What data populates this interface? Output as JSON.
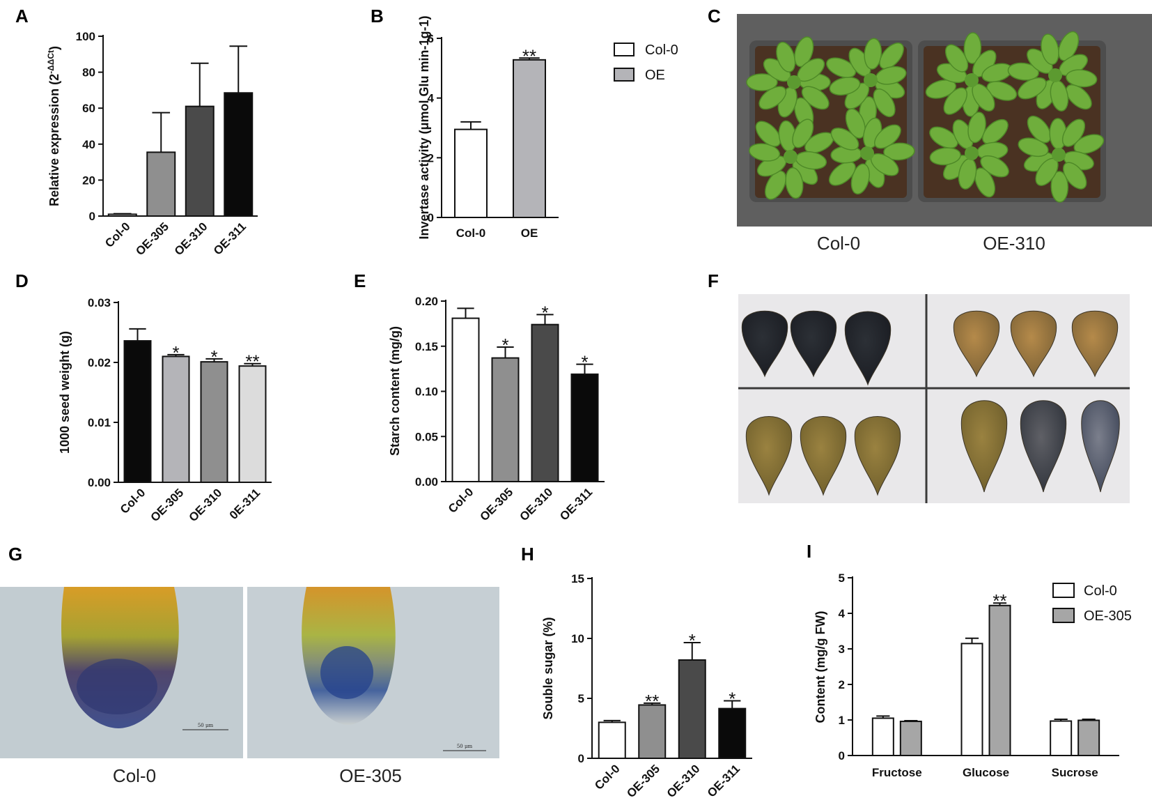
{
  "panel_letters": {
    "A": "A",
    "B": "B",
    "C": "C",
    "D": "D",
    "E": "E",
    "F": "F",
    "G": "G",
    "H": "H",
    "I": "I"
  },
  "photo_c": {
    "labels": [
      "Col-0",
      "OE-310"
    ]
  },
  "photo_g": {
    "labels": [
      "Col-0",
      "OE-305"
    ],
    "scale_bar": "50 μm"
  },
  "colors": {
    "black": "#0a0a0a",
    "dark": "#4a4a4a",
    "mid": "#8f8f8f",
    "light": "#b4b4b8",
    "pale": "#dcdcdc",
    "white": "#ffffff",
    "soil": "#4a3222",
    "leaf": "#6fae3c",
    "tray": "#4d4d4d",
    "backdrop": "#5f5f5f"
  },
  "chart_data": [
    {
      "panel": "A",
      "type": "bar",
      "ylabel": "Relative expression (2",
      "ylabel_sup": "-ΔΔCt",
      "ylabel_close": ")",
      "categories": [
        "Col-0",
        "OE-305",
        "OE-310",
        "OE-311"
      ],
      "values": [
        1,
        35.5,
        61,
        68.5
      ],
      "errors": [
        0.3,
        22,
        24,
        26
      ],
      "fills": [
        "#ffffff",
        "#8f8f8f",
        "#4a4a4a",
        "#0a0a0a"
      ],
      "sig": [
        "",
        "",
        "",
        ""
      ],
      "ylim": [
        0,
        100
      ],
      "yticks": [
        "0",
        "20",
        "40",
        "60",
        "80",
        "100"
      ]
    },
    {
      "panel": "B",
      "type": "bar",
      "ylabel": "Invertase activity (μmol Glu min-1g-1)",
      "categories": [
        "Col-0",
        "OE"
      ],
      "values": [
        2.95,
        5.28
      ],
      "errors": [
        0.25,
        0.06
      ],
      "fills": [
        "#ffffff",
        "#b4b4b8"
      ],
      "sig": [
        "",
        "**"
      ],
      "ylim": [
        0,
        6
      ],
      "yticks": [
        "0",
        "2",
        "4",
        "6"
      ],
      "legend": [
        "Col-0",
        "OE"
      ]
    },
    {
      "panel": "D",
      "type": "bar",
      "ylabel": "1000 seed weight (g)",
      "categories": [
        "Col-0",
        "OE-305",
        "OE-310",
        "0E-311"
      ],
      "values": [
        0.0236,
        0.021,
        0.0201,
        0.0194
      ],
      "errors": [
        0.002,
        0.0003,
        0.0005,
        0.0004
      ],
      "fills": [
        "#0a0a0a",
        "#b4b4b8",
        "#8f8f8f",
        "#dcdcdc"
      ],
      "sig": [
        "",
        "*",
        "*",
        "**"
      ],
      "ylim": [
        0,
        0.03
      ],
      "yticks": [
        "0.00",
        "0.01",
        "0.02",
        "0.03"
      ]
    },
    {
      "panel": "E",
      "type": "bar",
      "ylabel": "Starch content (mg/g)",
      "categories": [
        "Col-0",
        "OE-305",
        "OE-310",
        "OE-311"
      ],
      "values": [
        0.181,
        0.137,
        0.174,
        0.119
      ],
      "errors": [
        0.011,
        0.012,
        0.011,
        0.011
      ],
      "fills": [
        "#ffffff",
        "#8f8f8f",
        "#4a4a4a",
        "#0a0a0a"
      ],
      "sig": [
        "",
        "*",
        "*",
        "*"
      ],
      "ylim": [
        0,
        0.2
      ],
      "yticks": [
        "0.00",
        "0.05",
        "0.10",
        "0.15",
        "0.20"
      ]
    },
    {
      "panel": "H",
      "type": "bar",
      "ylabel": "Souble sugar (%)",
      "categories": [
        "Col-0",
        "OE-305",
        "OE-310",
        "OE-311"
      ],
      "values": [
        3,
        4.45,
        8.2,
        4.15
      ],
      "errors": [
        0.15,
        0.15,
        1.45,
        0.65
      ],
      "fills": [
        "#ffffff",
        "#8f8f8f",
        "#4a4a4a",
        "#0a0a0a"
      ],
      "sig": [
        "",
        "**",
        "*",
        "*"
      ],
      "ylim": [
        0,
        15
      ],
      "yticks": [
        "0",
        "5",
        "10",
        "15"
      ]
    },
    {
      "panel": "I",
      "type": "bar",
      "ylabel": "Content (mg/g FW)",
      "categories": [
        "Fructose",
        "Glucose",
        "Sucrose"
      ],
      "series": [
        {
          "name": "Col-0",
          "values": [
            1.05,
            3.15,
            0.97
          ],
          "errors": [
            0.06,
            0.15,
            0.05
          ],
          "fill": "#ffffff",
          "sig": [
            "",
            "",
            ""
          ]
        },
        {
          "name": "OE-305",
          "values": [
            0.96,
            4.22,
            0.99
          ],
          "errors": [
            0.02,
            0.07,
            0.03
          ],
          "fill": "#a6a6a6",
          "sig": [
            "",
            "**",
            ""
          ]
        }
      ],
      "ylim": [
        0,
        5
      ],
      "yticks": [
        "0",
        "1",
        "2",
        "3",
        "4",
        "5"
      ],
      "legend": [
        "Col-0",
        "OE-305"
      ]
    }
  ]
}
